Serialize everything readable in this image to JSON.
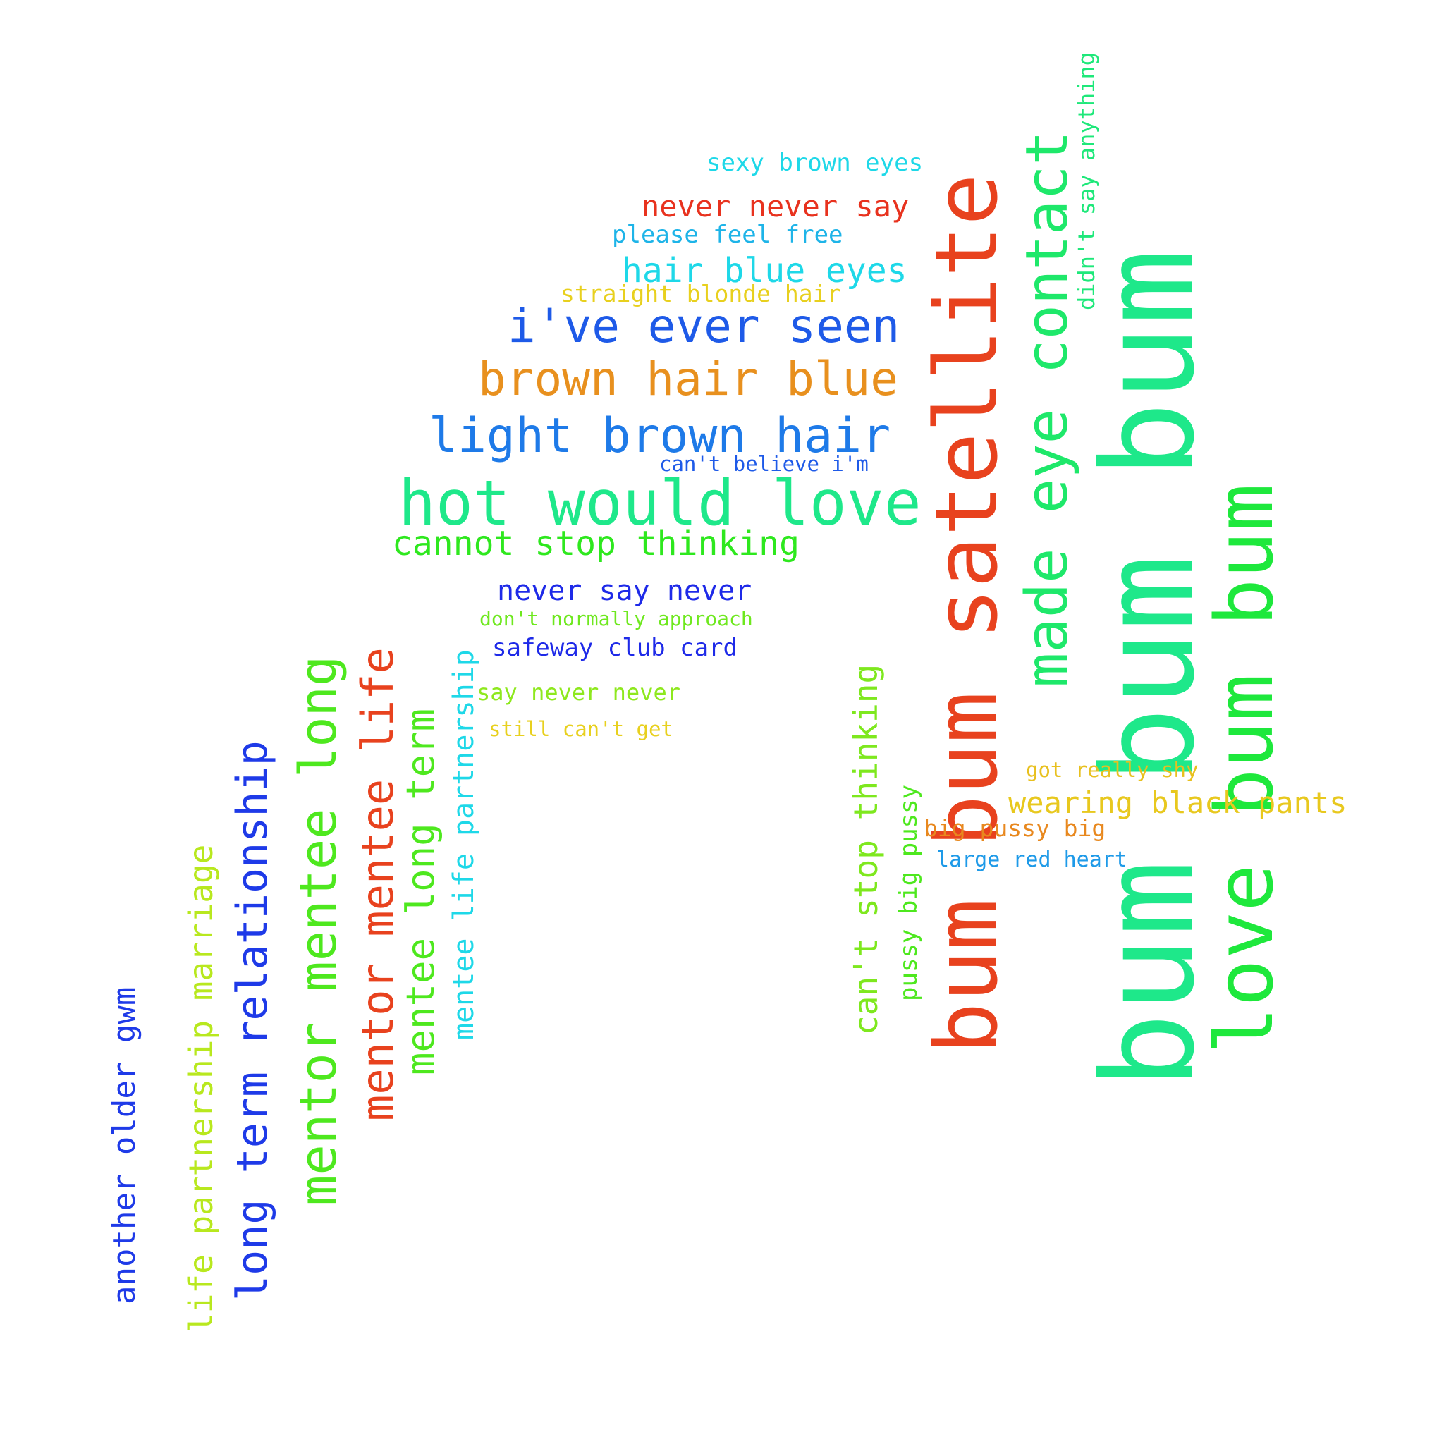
{
  "words": [
    {
      "id": "w01",
      "text": "bum bum bum",
      "color": "#1ee88a"
    },
    {
      "id": "w02",
      "text": "bum bum satellite",
      "color": "#e8421e"
    },
    {
      "id": "w03",
      "text": "love bum bum",
      "color": "#1ee83c"
    },
    {
      "id": "w04",
      "text": "made eye contact",
      "color": "#1ee86a"
    },
    {
      "id": "w05",
      "text": "hot would love",
      "color": "#1ee88a"
    },
    {
      "id": "w06",
      "text": "light brown hair",
      "color": "#1e7ae8"
    },
    {
      "id": "w07",
      "text": "brown hair blue",
      "color": "#e8901e"
    },
    {
      "id": "w08",
      "text": "i've ever seen",
      "color": "#1e5ae8"
    },
    {
      "id": "w09",
      "text": "cannot stop thinking",
      "color": "#2ee81e"
    },
    {
      "id": "w10",
      "text": "mentor mentee long",
      "color": "#4ee81e"
    },
    {
      "id": "w11",
      "text": "mentor mentee life",
      "color": "#e8421e"
    },
    {
      "id": "w12",
      "text": "long term relationship",
      "color": "#1e3ae8"
    },
    {
      "id": "w13",
      "text": "mentee long term",
      "color": "#4ee81e"
    },
    {
      "id": "w14",
      "text": "mentee life partnership",
      "color": "#1ed8e8"
    },
    {
      "id": "w15",
      "text": "life partnership marriage",
      "color": "#b8e81e"
    },
    {
      "id": "w16",
      "text": "another older gwm",
      "color": "#1e3ae8"
    },
    {
      "id": "w17",
      "text": "can't stop thinking",
      "color": "#7ee81e"
    },
    {
      "id": "w18",
      "text": "pussy big pussy",
      "color": "#4ee81e"
    },
    {
      "id": "w19",
      "text": "hair blue eyes",
      "color": "#1ed8e8"
    },
    {
      "id": "w20",
      "text": "never say never",
      "color": "#1e2ae8"
    },
    {
      "id": "w21",
      "text": "sexy brown eyes",
      "color": "#1ed8e8"
    },
    {
      "id": "w22",
      "text": "never never say",
      "color": "#e8321e"
    },
    {
      "id": "w23",
      "text": "please feel free",
      "color": "#1eb4e8"
    },
    {
      "id": "w24",
      "text": "straight blonde hair",
      "color": "#e8d01e"
    },
    {
      "id": "w25",
      "text": "can't believe i'm",
      "color": "#1e5ae8"
    },
    {
      "id": "w26",
      "text": "don't normally approach",
      "color": "#6ee81e"
    },
    {
      "id": "w27",
      "text": "safeway club card",
      "color": "#1e2ae8"
    },
    {
      "id": "w28",
      "text": "say never never",
      "color": "#8ee81e"
    },
    {
      "id": "w29",
      "text": "still can't get",
      "color": "#e8d01e"
    },
    {
      "id": "w30",
      "text": "didn't say anything",
      "color": "#1ee87a"
    },
    {
      "id": "w31",
      "text": "got really shy",
      "color": "#e8c01e"
    },
    {
      "id": "w32",
      "text": "wearing black pants",
      "color": "#e8c81e"
    },
    {
      "id": "w33",
      "text": "big pussy big",
      "color": "#e8881e"
    },
    {
      "id": "w34",
      "text": "large red heart",
      "color": "#1e9ae8"
    }
  ]
}
